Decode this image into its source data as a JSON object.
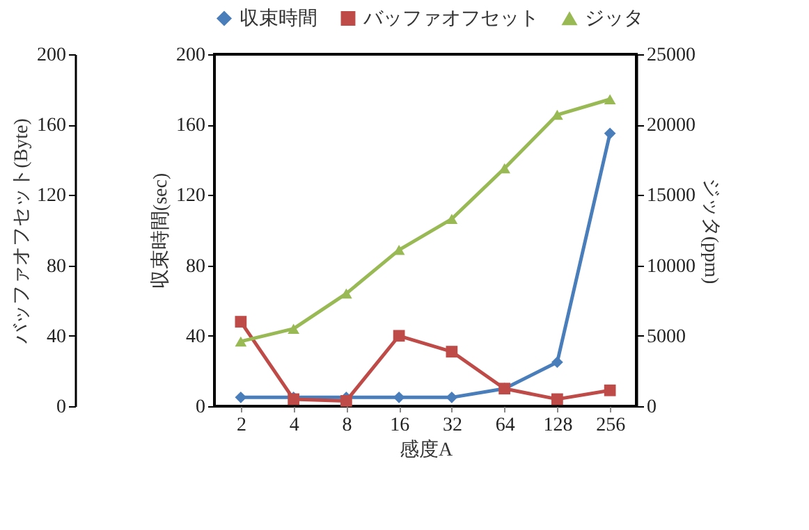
{
  "chart_data": {
    "type": "line",
    "xlabel": "感度A",
    "ylabel": "収束時間(sec)",
    "y2label": "ジッタ(ppm)",
    "y3label": "バッファオフセット(Byte)",
    "categories": [
      "2",
      "4",
      "8",
      "16",
      "32",
      "64",
      "128",
      "256"
    ],
    "ylim": [
      0,
      200
    ],
    "yticks": [
      0,
      40,
      80,
      120,
      160,
      200
    ],
    "y2lim": [
      0,
      25000
    ],
    "y2ticks": [
      0,
      5000,
      10000,
      15000,
      20000,
      25000
    ],
    "y3lim": [
      0,
      200
    ],
    "y3ticks": [
      0,
      40,
      80,
      120,
      160,
      200
    ],
    "legend": "top",
    "grid": false,
    "series": [
      {
        "name": "収束時間",
        "color": "#4a7ebb",
        "marker": "diamond",
        "axis": "y",
        "values": [
          5,
          5,
          5,
          5,
          5,
          10,
          25,
          155
        ]
      },
      {
        "name": "バッファオフセット",
        "color": "#be4b48",
        "marker": "square",
        "axis": "y3",
        "values": [
          48,
          4,
          3,
          40,
          31,
          10,
          4,
          9
        ]
      },
      {
        "name": "ジッタ",
        "color": "#98b954",
        "marker": "triangle",
        "axis": "y2",
        "values": [
          4600,
          5500,
          8000,
          11100,
          13300,
          16900,
          20700,
          21800
        ]
      }
    ]
  }
}
